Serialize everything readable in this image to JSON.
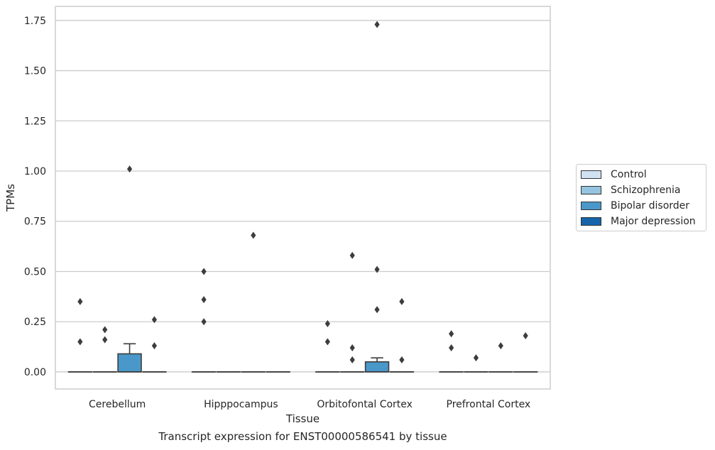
{
  "caption": "Transcript expression for ENST00000586541 by tissue",
  "chart_data": {
    "type": "box",
    "xlabel": "Tissue",
    "ylabel": "TPMs",
    "ylim": [
      -0.085,
      1.82
    ],
    "yticks": [
      0.0,
      0.25,
      0.5,
      0.75,
      1.0,
      1.25,
      1.5,
      1.75
    ],
    "ytick_labels": [
      "0.00",
      "0.25",
      "0.50",
      "0.75",
      "1.00",
      "1.25",
      "1.50",
      "1.75"
    ],
    "grid": true,
    "legend_position": "right",
    "categories": [
      "Cerebellum",
      "Hipppocampus",
      "Orbitofontal Cortex",
      "Prefrontal Cortex"
    ],
    "series": [
      {
        "name": "Control",
        "color": "#d0e1f2",
        "boxes": [
          {
            "q1": 0,
            "median": 0,
            "q3": 0,
            "whisker_low": 0,
            "whisker_high": 0,
            "outliers": [
              0.35,
              0.15
            ]
          },
          {
            "q1": 0,
            "median": 0,
            "q3": 0,
            "whisker_low": 0,
            "whisker_high": 0,
            "outliers": [
              0.5,
              0.36,
              0.25
            ]
          },
          {
            "q1": 0,
            "median": 0,
            "q3": 0,
            "whisker_low": 0,
            "whisker_high": 0,
            "outliers": [
              0.24,
              0.15
            ]
          },
          {
            "q1": 0,
            "median": 0,
            "q3": 0,
            "whisker_low": 0,
            "whisker_high": 0,
            "outliers": [
              0.19,
              0.12
            ]
          }
        ]
      },
      {
        "name": "Schizophrenia",
        "color": "#94c4df",
        "boxes": [
          {
            "q1": 0,
            "median": 0,
            "q3": 0,
            "whisker_low": 0,
            "whisker_high": 0,
            "outliers": [
              0.21,
              0.16
            ]
          },
          {
            "q1": 0,
            "median": 0,
            "q3": 0,
            "whisker_low": 0,
            "whisker_high": 0,
            "outliers": []
          },
          {
            "q1": 0,
            "median": 0,
            "q3": 0,
            "whisker_low": 0,
            "whisker_high": 0,
            "outliers": [
              0.58,
              0.12,
              0.06
            ]
          },
          {
            "q1": 0,
            "median": 0,
            "q3": 0,
            "whisker_low": 0,
            "whisker_high": 0,
            "outliers": [
              0.07
            ]
          }
        ]
      },
      {
        "name": "Bipolar disorder",
        "color": "#4a98c9",
        "boxes": [
          {
            "q1": 0,
            "median": 0,
            "q3": 0.09,
            "whisker_low": 0,
            "whisker_high": 0.14,
            "outliers": [
              1.01
            ]
          },
          {
            "q1": 0,
            "median": 0,
            "q3": 0,
            "whisker_low": 0,
            "whisker_high": 0,
            "outliers": [
              0.68
            ]
          },
          {
            "q1": 0,
            "median": 0,
            "q3": 0.05,
            "whisker_low": 0,
            "whisker_high": 0.07,
            "outliers": [
              1.73,
              0.51,
              0.31
            ]
          },
          {
            "q1": 0,
            "median": 0,
            "q3": 0,
            "whisker_low": 0,
            "whisker_high": 0,
            "outliers": [
              0.13
            ]
          }
        ]
      },
      {
        "name": "Major depression",
        "color": "#1764ab",
        "boxes": [
          {
            "q1": 0,
            "median": 0,
            "q3": 0,
            "whisker_low": 0,
            "whisker_high": 0,
            "outliers": [
              0.26,
              0.13
            ]
          },
          {
            "q1": 0,
            "median": 0,
            "q3": 0,
            "whisker_low": 0,
            "whisker_high": 0,
            "outliers": []
          },
          {
            "q1": 0,
            "median": 0,
            "q3": 0,
            "whisker_low": 0,
            "whisker_high": 0,
            "outliers": [
              0.35,
              0.06
            ]
          },
          {
            "q1": 0,
            "median": 0,
            "q3": 0,
            "whisker_low": 0,
            "whisker_high": 0,
            "outliers": [
              0.18
            ]
          }
        ]
      }
    ]
  }
}
